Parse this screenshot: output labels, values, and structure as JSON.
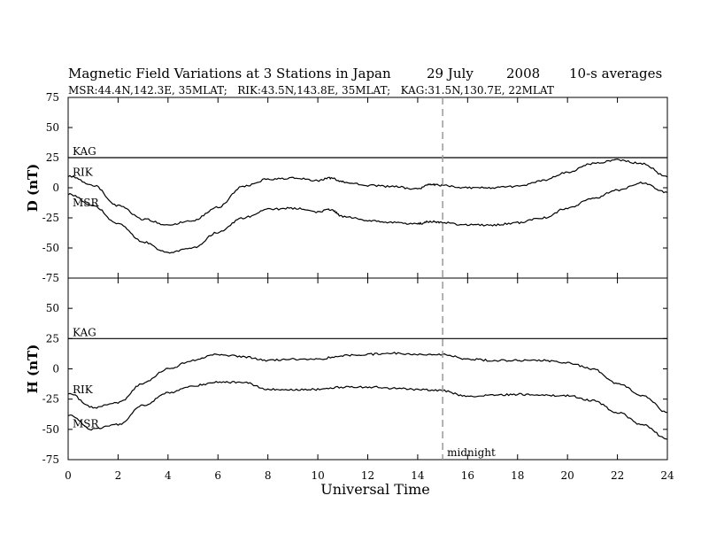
{
  "header": {
    "title": "Magnetic Field Variations at 3 Stations in Japan",
    "date_day": "29 July",
    "date_year": "2008",
    "averaging": "10-s averages",
    "stations_info": "MSR:44.4N,142.3E, 35MLAT;   RIK:43.5N,143.8E, 35MLAT;   KAG:31.5N,130.7E, 22MLAT"
  },
  "chart_data": [
    {
      "type": "line",
      "panel": "top",
      "ylabel": "D (nT)",
      "xlabel": "",
      "xlim": [
        0,
        24
      ],
      "ylim": [
        -75,
        75
      ],
      "yticks": [
        -75,
        -50,
        -25,
        0,
        25,
        50,
        75
      ],
      "xticks": [
        0,
        2,
        4,
        6,
        8,
        10,
        12,
        14,
        16,
        18,
        20,
        22,
        24
      ],
      "series": [
        {
          "name": "KAG",
          "x": [
            0,
            24
          ],
          "values": [
            25,
            25
          ]
        },
        {
          "name": "RIK",
          "x": [
            0,
            1,
            2,
            3,
            4,
            5,
            6,
            7,
            8,
            9,
            10,
            10.5,
            11,
            12,
            13,
            14,
            14.5,
            15,
            16,
            17,
            18,
            19,
            20,
            21,
            22,
            23,
            24
          ],
          "values": [
            10,
            2,
            -15,
            -26,
            -31,
            -27,
            -16,
            1,
            7,
            8,
            6,
            8,
            5,
            2,
            1,
            -1,
            3,
            2,
            0,
            0,
            1,
            6,
            13,
            20,
            23,
            20,
            9
          ]
        },
        {
          "name": "MSR",
          "x": [
            0,
            1,
            2,
            3,
            4,
            5,
            6,
            7,
            8,
            9,
            10,
            10.5,
            11,
            12,
            13,
            14,
            14.5,
            15,
            16,
            17,
            18,
            19,
            20,
            21,
            22,
            23,
            24
          ],
          "values": [
            -5,
            -15,
            -30,
            -45,
            -54,
            -50,
            -37,
            -25,
            -18,
            -17,
            -20,
            -18,
            -24,
            -27,
            -29,
            -30,
            -28,
            -29,
            -31,
            -31,
            -29,
            -25,
            -17,
            -9,
            -2,
            4,
            -4
          ]
        }
      ]
    },
    {
      "type": "line",
      "panel": "bottom",
      "ylabel": "H (nT)",
      "xlabel": "Universal Time",
      "xlim": [
        0,
        24
      ],
      "ylim": [
        -75,
        75
      ],
      "yticks": [
        -75,
        -50,
        -25,
        0,
        25,
        50,
        75
      ],
      "xticks": [
        0,
        2,
        4,
        6,
        8,
        10,
        12,
        14,
        16,
        18,
        20,
        22,
        24
      ],
      "series": [
        {
          "name": "KAG",
          "x": [
            0,
            24
          ],
          "values": [
            25,
            25
          ]
        },
        {
          "name": "RIK",
          "x": [
            0,
            1,
            2,
            3,
            4,
            5,
            6,
            7,
            8,
            9,
            10,
            11,
            12,
            13,
            14,
            15,
            16,
            17,
            18,
            19,
            20,
            21,
            22,
            23,
            24
          ],
          "values": [
            -20,
            -32,
            -28,
            -12,
            0,
            7,
            12,
            10,
            7,
            8,
            8,
            11,
            12,
            13,
            12,
            12,
            8,
            7,
            7,
            7,
            5,
            0,
            -12,
            -22,
            -36
          ]
        },
        {
          "name": "MSR",
          "x": [
            0,
            1,
            2,
            3,
            4,
            5,
            6,
            7,
            8,
            9,
            10,
            11,
            12,
            13,
            14,
            15,
            16,
            17,
            18,
            19,
            20,
            21,
            22,
            23,
            24
          ],
          "values": [
            -38,
            -50,
            -46,
            -30,
            -20,
            -14,
            -11,
            -11,
            -17,
            -17,
            -17,
            -15,
            -15,
            -16,
            -17,
            -18,
            -23,
            -22,
            -21,
            -22,
            -22,
            -26,
            -36,
            -46,
            -58
          ]
        }
      ]
    }
  ],
  "annotations": {
    "midnight_x": 15,
    "midnight_label": "midnight"
  }
}
